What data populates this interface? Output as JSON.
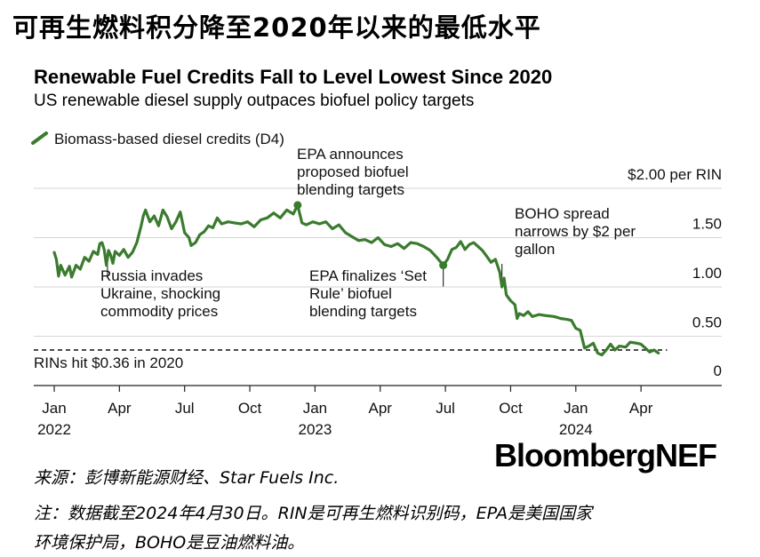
{
  "cn_title": "可再生燃料积分降至2020年以来的最低水平",
  "chart_data": {
    "type": "line",
    "title": "Renewable Fuel Credits Fall to Level Lowest Since 2020",
    "subtitle": "US renewable diesel supply outpaces biofuel policy targets",
    "legend": [
      {
        "label": "Biomass-based diesel credits (D4)",
        "color": "#3a7b2e"
      }
    ],
    "ylabel": "$ per RIN",
    "ylim": [
      0,
      2.0
    ],
    "y_ticks": [
      {
        "value": 2.0,
        "label": "$2.00 per RIN"
      },
      {
        "value": 1.5,
        "label": "1.50"
      },
      {
        "value": 1.0,
        "label": "1.00"
      },
      {
        "value": 0.5,
        "label": "0.50"
      },
      {
        "value": 0,
        "label": "0"
      }
    ],
    "x_range": [
      0,
      28
    ],
    "x_ticks": [
      {
        "value": 0,
        "label": "Jan",
        "year": "2022"
      },
      {
        "value": 3,
        "label": "Apr",
        "year": ""
      },
      {
        "value": 6,
        "label": "Jul",
        "year": ""
      },
      {
        "value": 9,
        "label": "Oct",
        "year": ""
      },
      {
        "value": 12,
        "label": "Jan",
        "year": "2023"
      },
      {
        "value": 15,
        "label": "Apr",
        "year": ""
      },
      {
        "value": 18,
        "label": "Jul",
        "year": ""
      },
      {
        "value": 21,
        "label": "Oct",
        "year": ""
      },
      {
        "value": 24,
        "label": "Jan",
        "year": "2024"
      },
      {
        "value": 27,
        "label": "Apr",
        "year": ""
      }
    ],
    "series": [
      {
        "name": "Biomass-based diesel credits (D4)",
        "color": "#3a7b2e",
        "points": [
          [
            0.0,
            1.35
          ],
          [
            0.1,
            1.28
          ],
          [
            0.2,
            1.11
          ],
          [
            0.3,
            1.22
          ],
          [
            0.5,
            1.12
          ],
          [
            0.7,
            1.21
          ],
          [
            0.8,
            1.1
          ],
          [
            1.0,
            1.22
          ],
          [
            1.2,
            1.18
          ],
          [
            1.4,
            1.3
          ],
          [
            1.6,
            1.26
          ],
          [
            1.8,
            1.36
          ],
          [
            2.0,
            1.33
          ],
          [
            2.1,
            1.44
          ],
          [
            2.2,
            1.45
          ],
          [
            2.3,
            1.38
          ],
          [
            2.4,
            1.22
          ],
          [
            2.5,
            1.37
          ],
          [
            2.6,
            1.32
          ],
          [
            2.7,
            1.24
          ],
          [
            2.8,
            1.36
          ],
          [
            3.0,
            1.32
          ],
          [
            3.2,
            1.38
          ],
          [
            3.4,
            1.3
          ],
          [
            3.6,
            1.35
          ],
          [
            3.8,
            1.45
          ],
          [
            4.0,
            1.62
          ],
          [
            4.1,
            1.72
          ],
          [
            4.2,
            1.78
          ],
          [
            4.4,
            1.66
          ],
          [
            4.6,
            1.72
          ],
          [
            4.8,
            1.62
          ],
          [
            5.0,
            1.78
          ],
          [
            5.2,
            1.71
          ],
          [
            5.4,
            1.59
          ],
          [
            5.6,
            1.66
          ],
          [
            5.8,
            1.76
          ],
          [
            6.0,
            1.55
          ],
          [
            6.2,
            1.5
          ],
          [
            6.3,
            1.42
          ],
          [
            6.5,
            1.45
          ],
          [
            6.7,
            1.53
          ],
          [
            6.9,
            1.56
          ],
          [
            7.1,
            1.62
          ],
          [
            7.3,
            1.6
          ],
          [
            7.5,
            1.7
          ],
          [
            7.7,
            1.64
          ],
          [
            8.0,
            1.66
          ],
          [
            8.3,
            1.65
          ],
          [
            8.6,
            1.64
          ],
          [
            8.9,
            1.66
          ],
          [
            9.2,
            1.61
          ],
          [
            9.5,
            1.68
          ],
          [
            9.8,
            1.7
          ],
          [
            10.1,
            1.75
          ],
          [
            10.4,
            1.7
          ],
          [
            10.7,
            1.78
          ],
          [
            11.0,
            1.74
          ],
          [
            11.2,
            1.83
          ],
          [
            11.4,
            1.65
          ],
          [
            11.6,
            1.63
          ],
          [
            11.9,
            1.66
          ],
          [
            12.2,
            1.64
          ],
          [
            12.5,
            1.66
          ],
          [
            12.8,
            1.59
          ],
          [
            13.1,
            1.63
          ],
          [
            13.4,
            1.55
          ],
          [
            13.7,
            1.51
          ],
          [
            14.0,
            1.47
          ],
          [
            14.3,
            1.48
          ],
          [
            14.6,
            1.45
          ],
          [
            14.9,
            1.5
          ],
          [
            15.2,
            1.43
          ],
          [
            15.5,
            1.41
          ],
          [
            15.8,
            1.44
          ],
          [
            16.1,
            1.39
          ],
          [
            16.4,
            1.45
          ],
          [
            16.7,
            1.44
          ],
          [
            17.0,
            1.41
          ],
          [
            17.3,
            1.37
          ],
          [
            17.6,
            1.3
          ],
          [
            17.9,
            1.22
          ],
          [
            18.1,
            1.28
          ],
          [
            18.3,
            1.38
          ],
          [
            18.5,
            1.4
          ],
          [
            18.7,
            1.46
          ],
          [
            18.9,
            1.38
          ],
          [
            19.1,
            1.43
          ],
          [
            19.3,
            1.45
          ],
          [
            19.5,
            1.41
          ],
          [
            19.7,
            1.37
          ],
          [
            19.9,
            1.31
          ],
          [
            20.1,
            1.25
          ],
          [
            20.3,
            1.28
          ],
          [
            20.5,
            1.15
          ],
          [
            20.6,
            1.0
          ],
          [
            20.7,
            1.09
          ],
          [
            20.8,
            0.92
          ],
          [
            21.0,
            0.86
          ],
          [
            21.2,
            0.82
          ],
          [
            21.3,
            0.68
          ],
          [
            21.4,
            0.73
          ],
          [
            21.6,
            0.71
          ],
          [
            21.8,
            0.75
          ],
          [
            22.0,
            0.7
          ],
          [
            22.3,
            0.72
          ],
          [
            22.6,
            0.71
          ],
          [
            23.0,
            0.7
          ],
          [
            23.3,
            0.68
          ],
          [
            23.6,
            0.67
          ],
          [
            23.8,
            0.66
          ],
          [
            24.0,
            0.58
          ],
          [
            24.2,
            0.56
          ],
          [
            24.4,
            0.38
          ],
          [
            24.6,
            0.4
          ],
          [
            24.8,
            0.43
          ],
          [
            25.0,
            0.33
          ],
          [
            25.2,
            0.31
          ],
          [
            25.4,
            0.36
          ],
          [
            25.6,
            0.42
          ],
          [
            25.8,
            0.36
          ],
          [
            26.0,
            0.4
          ],
          [
            26.3,
            0.39
          ],
          [
            26.5,
            0.44
          ],
          [
            26.8,
            0.43
          ],
          [
            27.0,
            0.42
          ],
          [
            27.2,
            0.38
          ],
          [
            27.4,
            0.34
          ],
          [
            27.6,
            0.36
          ],
          [
            27.8,
            0.33
          ]
        ]
      }
    ],
    "reference_line": {
      "value": 0.36,
      "label": "RINs hit $0.36 in 2020"
    },
    "annotations": [
      {
        "x": 2.45,
        "lines": [
          "Russia invades",
          "Ukraine, shocking",
          "commodity prices"
        ]
      },
      {
        "x": 11.2,
        "lines": [
          "EPA announces",
          "proposed biofuel",
          "blending targets"
        ]
      },
      {
        "x": 17.9,
        "lines": [
          "EPA finalizes ‘Set",
          "Rule’ biofuel",
          "blending targets"
        ]
      },
      {
        "x": 20.6,
        "lines": [
          "BOHO spread",
          "narrows by $2 per",
          "gallon"
        ]
      }
    ]
  },
  "brand": "BloombergNEF",
  "source": "来源：彭博新能源财经、Star Fuels Inc.",
  "note_line1": "注：数据截至2024年4月30日。RIN是可再生燃料识别码，EPA是美国国家",
  "note_line2": "环境保护局，BOHO是豆油燃料油。"
}
